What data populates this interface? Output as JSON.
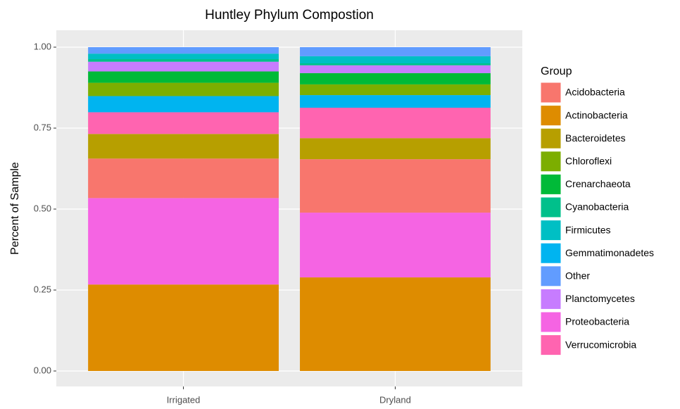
{
  "chart_data": {
    "type": "stacked-bar",
    "title": "Huntley Phylum Compostion",
    "y_label": "Percent of Sample",
    "legend_title": "Group",
    "legend_position": "right",
    "grid": true,
    "categories": [
      "Irrigated",
      "Dryland"
    ],
    "ylim": [
      0,
      1
    ],
    "yticks": [
      {
        "value": 0,
        "label": "0.00"
      },
      {
        "value": 0.25,
        "label": "0.25"
      },
      {
        "value": 0.5,
        "label": "0.50"
      },
      {
        "value": 0.75,
        "label": "0.75"
      },
      {
        "value": 1,
        "label": "1.00"
      }
    ],
    "series": [
      {
        "name": "Actinobacteria",
        "color": "#DE8C00",
        "values": [
          0.267,
          0.289
        ]
      },
      {
        "name": "Proteobacteria",
        "color": "#F564E3",
        "values": [
          0.267,
          0.2
        ]
      },
      {
        "name": "Acidobacteria",
        "color": "#F8766D",
        "values": [
          0.122,
          0.165
        ]
      },
      {
        "name": "Bacteroidetes",
        "color": "#B79F00",
        "values": [
          0.076,
          0.065
        ]
      },
      {
        "name": "Verrucomicrobia",
        "color": "#FF64B0",
        "values": [
          0.067,
          0.094
        ]
      },
      {
        "name": "Gemmatimonadetes",
        "color": "#00B4F0",
        "values": [
          0.05,
          0.039
        ]
      },
      {
        "name": "Chloroflexi",
        "color": "#7CAE00",
        "values": [
          0.041,
          0.033
        ]
      },
      {
        "name": "Crenarchaeota",
        "color": "#00BA38",
        "values": [
          0.035,
          0.035
        ]
      },
      {
        "name": "Planctomycetes",
        "color": "#C77CFF",
        "values": [
          0.03,
          0.024
        ]
      },
      {
        "name": "Cyanobacteria",
        "color": "#00C08B",
        "values": [
          0.008,
          0.006
        ]
      },
      {
        "name": "Firmicutes",
        "color": "#00BFC4",
        "values": [
          0.017,
          0.022
        ]
      },
      {
        "name": "Other",
        "color": "#619CFF",
        "values": [
          0.02,
          0.028
        ]
      }
    ]
  }
}
